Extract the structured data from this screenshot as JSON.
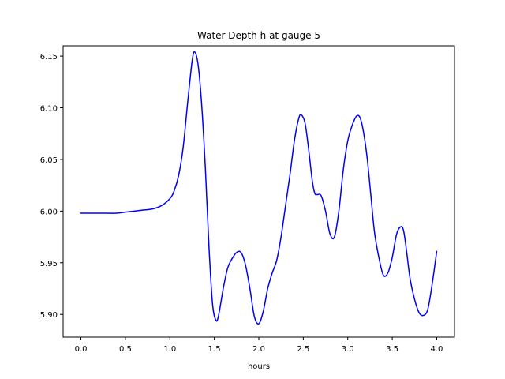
{
  "chart_data": {
    "type": "line",
    "title": "Water Depth h at gauge 5",
    "xlabel": "hours",
    "ylabel": "",
    "xlim": [
      -0.2,
      4.2
    ],
    "ylim": [
      5.878,
      6.16
    ],
    "xticks": [
      0.0,
      0.5,
      1.0,
      1.5,
      2.0,
      2.5,
      3.0,
      3.5,
      4.0
    ],
    "xtick_labels": [
      "0.0",
      "0.5",
      "1.0",
      "1.5",
      "2.0",
      "2.5",
      "3.0",
      "3.5",
      "4.0"
    ],
    "yticks": [
      5.9,
      5.95,
      6.0,
      6.05,
      6.1,
      6.15
    ],
    "ytick_labels": [
      "5.90",
      "5.95",
      "6.00",
      "6.05",
      "6.10",
      "6.15"
    ],
    "grid": false,
    "series": [
      {
        "color": "#0000ff",
        "x": [
          0.0,
          0.2,
          0.4,
          0.5,
          0.6,
          0.7,
          0.8,
          0.9,
          1.0,
          1.05,
          1.1,
          1.15,
          1.2,
          1.25,
          1.28,
          1.32,
          1.36,
          1.4,
          1.44,
          1.48,
          1.52,
          1.55,
          1.6,
          1.65,
          1.7,
          1.75,
          1.8,
          1.85,
          1.9,
          1.95,
          2.0,
          2.05,
          2.1,
          2.15,
          2.2,
          2.25,
          2.3,
          2.35,
          2.4,
          2.45,
          2.48,
          2.52,
          2.56,
          2.6,
          2.63,
          2.66,
          2.7,
          2.75,
          2.8,
          2.85,
          2.9,
          2.95,
          3.0,
          3.05,
          3.1,
          3.14,
          3.18,
          3.22,
          3.26,
          3.3,
          3.35,
          3.4,
          3.45,
          3.5,
          3.55,
          3.6,
          3.63,
          3.66,
          3.7,
          3.75,
          3.8,
          3.85,
          3.9,
          3.95,
          4.0
        ],
        "y": [
          5.998,
          5.998,
          5.998,
          5.999,
          6.0,
          6.001,
          6.002,
          6.005,
          6.012,
          6.02,
          6.035,
          6.062,
          6.105,
          6.145,
          6.154,
          6.14,
          6.1,
          6.04,
          5.965,
          5.91,
          5.894,
          5.9,
          5.925,
          5.945,
          5.954,
          5.96,
          5.96,
          5.948,
          5.925,
          5.898,
          5.891,
          5.903,
          5.925,
          5.94,
          5.952,
          5.975,
          6.005,
          6.035,
          6.068,
          6.09,
          6.093,
          6.085,
          6.06,
          6.03,
          6.017,
          6.016,
          6.015,
          6.0,
          5.978,
          5.975,
          6.0,
          6.04,
          6.068,
          6.083,
          6.092,
          6.09,
          6.075,
          6.05,
          6.015,
          5.98,
          5.955,
          5.938,
          5.94,
          5.955,
          5.978,
          5.985,
          5.98,
          5.962,
          5.935,
          5.915,
          5.902,
          5.899,
          5.905,
          5.93,
          5.961
        ]
      }
    ]
  }
}
